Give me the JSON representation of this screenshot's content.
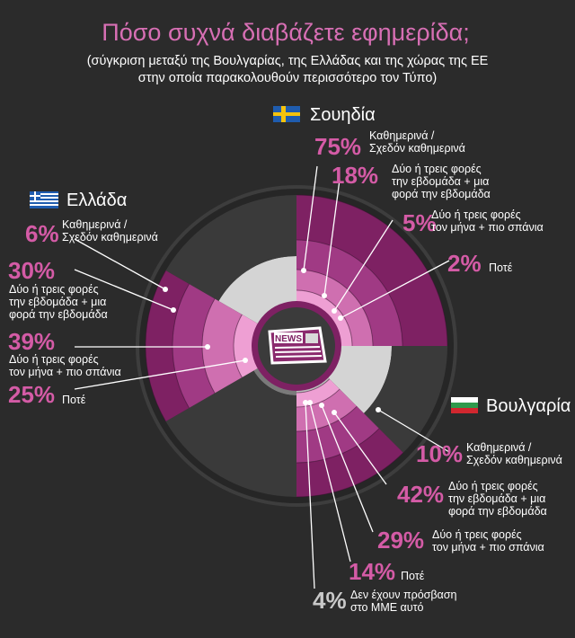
{
  "title": "Πόσο συχνά διαβάζετε εφημερίδα;",
  "subtitle_line1": "(σύγκριση μεταξύ της Βουλγαρίας, της Ελλάδας και της χώρας της ΕΕ",
  "subtitle_line2": "στην οποία παρακολουθούν περισσότερο τον Τύπο)",
  "center_icon": "newspaper-icon",
  "center_icon_text": "NEWS",
  "colors": {
    "background": "#2b2b2b",
    "title": "#d76fb4",
    "daily": "#7e2163",
    "weekly": "#a03a84",
    "monthly": "#cf6fb0",
    "never": "#ee9fd3",
    "inactive_light": "#d4d4d4",
    "inactive_dark": "#3a3a3a"
  },
  "chart_data": {
    "type": "radial",
    "categories": [
      "Καθημερινά / Σχεδόν καθημερινά",
      "Δύο ή τρεις φορές την εβδομάδα + μια φορά την εβδομάδα",
      "Δύο ή τρεις φορές τον μήνα + πιο σπάνια",
      "Ποτέ",
      "Δεν έχουν πρόσβαση στο ΜΜΕ αυτό"
    ],
    "series": [
      {
        "name": "Σουηδία",
        "flag": "sweden-flag-icon",
        "labels": [
          {
            "pct": "75%",
            "lines": [
              "Καθημερινά /",
              "Σχεδόν καθημερινά"
            ]
          },
          {
            "pct": "18%",
            "lines": [
              "Δύο ή τρεις φορές",
              "την εβδομάδα + μια",
              "φορά την εβδομάδα"
            ]
          },
          {
            "pct": "5%",
            "lines": [
              "Δύο ή τρεις φορές",
              "τον μήνα + πιο σπάνια"
            ]
          },
          {
            "pct": "2%",
            "lines": [
              "Ποτέ"
            ]
          }
        ]
      },
      {
        "name": "Ελλάδα",
        "flag": "greece-flag-icon",
        "labels": [
          {
            "pct": "6%",
            "lines": [
              "Καθημερινά /",
              "Σχεδόν καθημερινά"
            ]
          },
          {
            "pct": "30%",
            "lines": [
              "Δύο ή τρεις φορές",
              "την εβδομάδα + μια",
              "φορά την εβδομάδα"
            ]
          },
          {
            "pct": "39%",
            "lines": [
              "Δύο ή τρεις φορές",
              "τον μήνα + πιο σπάνια"
            ]
          },
          {
            "pct": "25%",
            "lines": [
              "Ποτέ"
            ]
          }
        ]
      },
      {
        "name": "Βουλγαρία",
        "flag": "bulgaria-flag-icon",
        "labels": [
          {
            "pct": "10%",
            "lines": [
              "Καθημερινά /",
              "Σχεδόν καθημερινά"
            ]
          },
          {
            "pct": "42%",
            "lines": [
              "Δύο ή τρεις φορές",
              "την εβδομάδα + μια",
              "φορά την εβδομάδα"
            ]
          },
          {
            "pct": "29%",
            "lines": [
              "Δύο ή τρεις φορές",
              "τον μήνα + πιο σπάνια"
            ]
          },
          {
            "pct": "14%",
            "lines": [
              "Ποτέ"
            ]
          },
          {
            "pct": "4%",
            "lines": [
              "Δεν έχουν πρόσβαση",
              "στο ΜΜΕ αυτό"
            ]
          }
        ]
      }
    ]
  }
}
